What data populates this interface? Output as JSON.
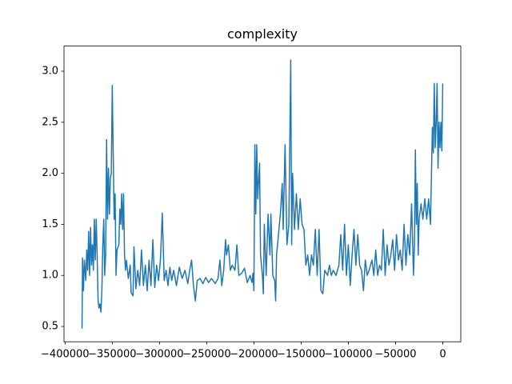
{
  "chart_data": {
    "type": "line",
    "title": "complexity",
    "color": "#1f77b4",
    "xlim": [
      -401100,
      19100
    ],
    "ylim": [
      0.35,
      3.246
    ],
    "xticks": [
      {
        "value": -400000,
        "label": "−400000"
      },
      {
        "value": -350000,
        "label": "−350000"
      },
      {
        "value": -300000,
        "label": "−300000"
      },
      {
        "value": -250000,
        "label": "−250000"
      },
      {
        "value": -200000,
        "label": "−200000"
      },
      {
        "value": -150000,
        "label": "−150000"
      },
      {
        "value": -100000,
        "label": "−100000"
      },
      {
        "value": -50000,
        "label": "−50000"
      },
      0
    ],
    "yticks": [
      0.5,
      {
        "value": 1,
        "label": "1.0"
      },
      1.5,
      {
        "value": 2,
        "label": "2.0"
      },
      2.5,
      {
        "value": 3,
        "label": "3.0"
      }
    ],
    "x": [
      -382000,
      -381500,
      -380500,
      -379500,
      -378000,
      -377000,
      -376000,
      -375000,
      -374000,
      -373000,
      -372000,
      -371000,
      -370000,
      -369000,
      -368000,
      -367000,
      -366000,
      -365000,
      -364000,
      -363000,
      -362000,
      -361000,
      -360000,
      -359000,
      -358000,
      -357000,
      -356000,
      -355000,
      -354000,
      -353000,
      -352000,
      -351000,
      -350000,
      -349000,
      -348000,
      -347000,
      -346000,
      -345000,
      -343000,
      -342000,
      -341000,
      -340000,
      -339000,
      -338000,
      -337000,
      -336000,
      -335000,
      -333000,
      -331000,
      -330000,
      -328000,
      -327000,
      -325000,
      -323000,
      -321000,
      -319000,
      -317000,
      -315000,
      -313000,
      -311000,
      -309000,
      -307000,
      -305000,
      -303000,
      -301000,
      -299000,
      -297000,
      -295000,
      -293000,
      -291000,
      -289000,
      -287000,
      -285000,
      -282000,
      -279000,
      -276000,
      -273000,
      -270000,
      -268000,
      -266000,
      -264000,
      -262000,
      -260000,
      -257000,
      -254000,
      -251000,
      -248000,
      -245000,
      -241000,
      -238000,
      -236000,
      -234000,
      -232000,
      -230000,
      -229000,
      -227000,
      -225000,
      -223000,
      -220000,
      -218000,
      -216000,
      -213000,
      -210000,
      -207000,
      -204000,
      -202000,
      -201000,
      -200000,
      -199000,
      -198000,
      -197000,
      -196000,
      -194000,
      -193000,
      -191000,
      -190000,
      -189000,
      -187000,
      -185000,
      -183000,
      -182000,
      -180000,
      -178000,
      -177000,
      -176000,
      -174000,
      -172000,
      -170000,
      -169000,
      -167000,
      -165000,
      -163000,
      -161000,
      -160000,
      -159000,
      -157000,
      -155000,
      -153000,
      -151000,
      -149000,
      -147000,
      -145000,
      -143000,
      -141000,
      -139000,
      -137000,
      -135000,
      -133000,
      -131000,
      -129000,
      -127000,
      -125000,
      -122000,
      -120000,
      -118000,
      -116000,
      -113000,
      -110000,
      -108000,
      -106000,
      -104000,
      -102000,
      -100000,
      -98000,
      -96000,
      -94000,
      -92000,
      -90000,
      -88000,
      -86000,
      -84000,
      -82000,
      -80000,
      -78000,
      -75000,
      -73000,
      -71000,
      -69000,
      -67000,
      -65000,
      -63000,
      -61000,
      -59000,
      -57000,
      -55000,
      -53000,
      -51000,
      -49000,
      -47000,
      -45000,
      -43000,
      -41000,
      -39000,
      -37000,
      -35000,
      -33000,
      -31000,
      -30000,
      -29000,
      -28000,
      -27000,
      -26000,
      -25000,
      -23000,
      -21000,
      -19000,
      -17000,
      -15000,
      -13000,
      -11000,
      -10000,
      -9000,
      -8000,
      -7000,
      -6000,
      -5000,
      -4000,
      -3000,
      -2000,
      -1000,
      0
    ],
    "values": [
      0.48,
      1.17,
      0.85,
      1.15,
      0.95,
      1.25,
      1.05,
      1.43,
      1.0,
      1.47,
      1.1,
      1.3,
      1.05,
      1.55,
      1.15,
      1.55,
      1.2,
      0.75,
      0.68,
      0.72,
      0.64,
      0.85,
      1.3,
      1.55,
      1.0,
      1.2,
      2.33,
      1.55,
      2.05,
      1.6,
      1.95,
      2.0,
      2.86,
      2.2,
      1.55,
      1.8,
      1.0,
      1.25,
      1.3,
      1.65,
      1.5,
      1.8,
      1.45,
      1.8,
      1.2,
      1.05,
      1.15,
      0.97,
      1.1,
      0.83,
      0.8,
      1.28,
      0.87,
      1.05,
      0.9,
      1.25,
      0.9,
      1.1,
      0.85,
      1.15,
      0.9,
      1.35,
      0.88,
      1.1,
      0.95,
      1.15,
      1.61,
      0.95,
      1.05,
      0.9,
      1.08,
      0.95,
      1.05,
      0.9,
      1.08,
      0.97,
      1.05,
      0.92,
      1.05,
      1.15,
      0.9,
      0.75,
      0.95,
      0.97,
      0.92,
      0.98,
      0.93,
      0.97,
      0.92,
      0.97,
      1.15,
      0.9,
      1.05,
      1.35,
      1.2,
      1.3,
      1.05,
      1.1,
      1.05,
      1.3,
      1.0,
      1.02,
      1.07,
      0.93,
      1.0,
      0.93,
      1.02,
      0.85,
      2.28,
      1.6,
      2.28,
      1.75,
      2.1,
      1.2,
      1.0,
      0.82,
      1.5,
      1.0,
      1.6,
      1.2,
      1.6,
      1.0,
      0.95,
      0.75,
      1.2,
      1.4,
      1.6,
      1.9,
      1.45,
      2.28,
      1.3,
      1.5,
      3.11,
      1.3,
      2.0,
      1.45,
      1.8,
      1.45,
      1.75,
      1.5,
      1.45,
      1.1,
      1.2,
      1.0,
      1.2,
      1.1,
      1.45,
      1.0,
      1.45,
      0.85,
      0.82,
      1.05,
      1.0,
      1.1,
      1.0,
      1.05,
      1.0,
      1.1,
      1.4,
      1.05,
      1.5,
      1.0,
      1.3,
      0.9,
      1.2,
      1.45,
      1.1,
      1.4,
      1.1,
      1.05,
      0.85,
      1.15,
      1.0,
      1.05,
      1.15,
      1.0,
      1.25,
      1.0,
      1.1,
      1.05,
      1.45,
      1.0,
      1.3,
      1.1,
      1.2,
      1.35,
      1.05,
      1.4,
      1.15,
      1.25,
      1.05,
      1.5,
      1.1,
      1.4,
      1.2,
      1.7,
      1.0,
      1.3,
      2.23,
      1.5,
      1.9,
      1.2,
      1.55,
      1.7,
      1.55,
      1.75,
      1.55,
      1.75,
      1.5,
      2.45,
      2.2,
      2.88,
      2.25,
      2.5,
      2.88,
      2.05,
      2.5,
      2.25,
      2.5,
      2.22,
      2.88
    ]
  }
}
